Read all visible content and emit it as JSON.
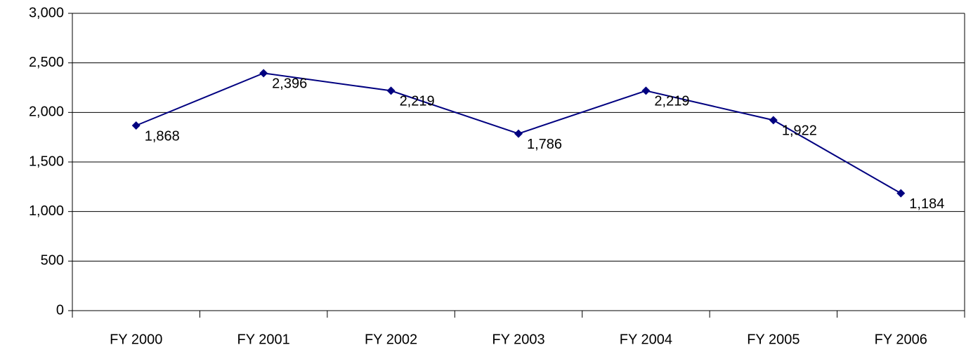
{
  "chart_data": {
    "type": "line",
    "categories": [
      "FY 2000",
      "FY 2001",
      "FY 2002",
      "FY 2003",
      "FY 2004",
      "FY 2005",
      "FY 2006"
    ],
    "values": [
      1868,
      2396,
      2219,
      1786,
      2219,
      1922,
      1184
    ],
    "value_labels": [
      "1,868",
      "2,396",
      "2,219",
      "1,786",
      "2,219",
      "1,922",
      "1,184"
    ],
    "color": "#000080",
    "ylim": [
      0,
      3000
    ],
    "yticks": [
      0,
      500,
      {
        "value": 1000,
        "label": "1,000"
      },
      {
        "value": 1500,
        "label": "1,500"
      },
      {
        "value": 2000,
        "label": "2,000"
      },
      {
        "value": 2500,
        "label": "2,500"
      },
      {
        "value": 3000,
        "label": "3,000"
      }
    ],
    "grid": true
  }
}
